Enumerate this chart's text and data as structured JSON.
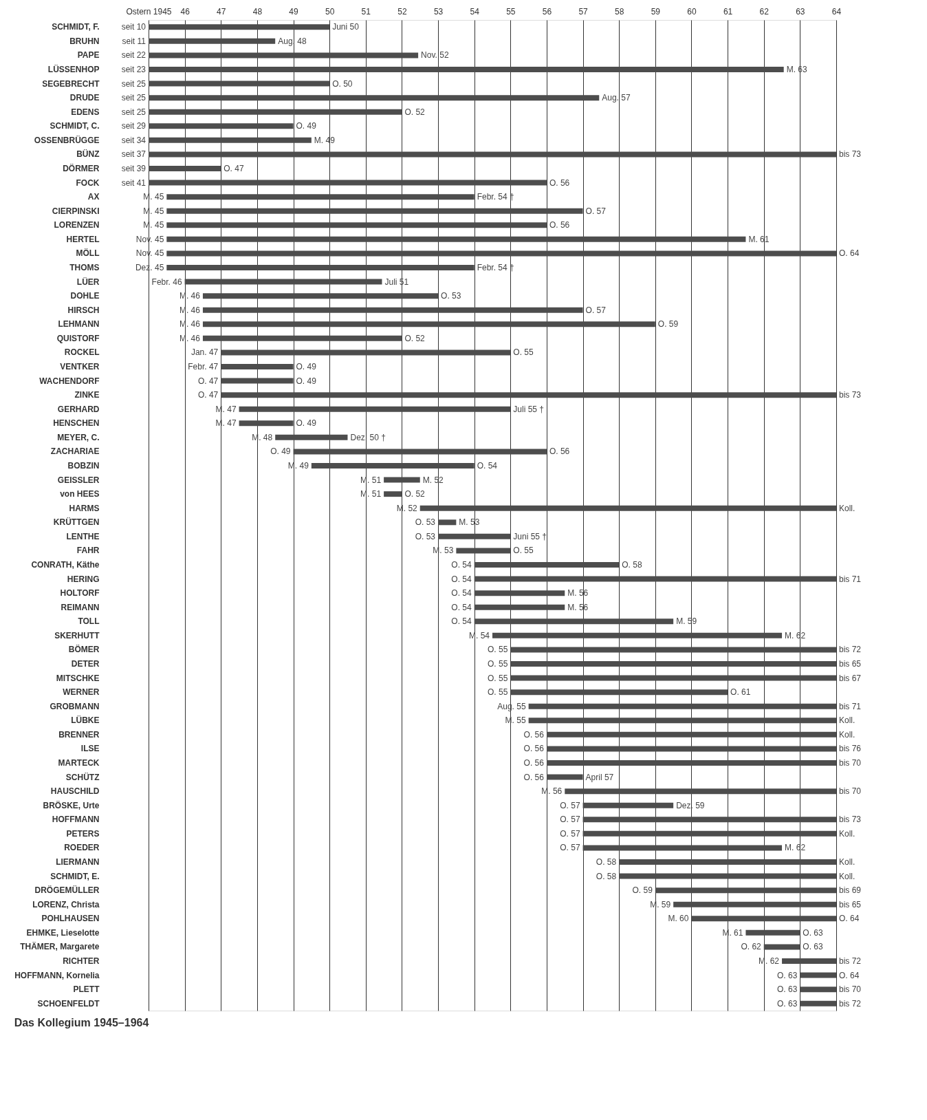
{
  "chart_data": {
    "type": "bar",
    "orientation": "horizontal",
    "title": "Das Kollegium 1945–1964",
    "color": "#4d4d4d",
    "grid": "x",
    "xlim": [
      1945,
      1964
    ],
    "xticks": [
      {
        "value": 1945,
        "label": "Ostern 1945"
      },
      {
        "value": 1946,
        "label": "46"
      },
      {
        "value": 1947,
        "label": "47"
      },
      {
        "value": 1948,
        "label": "48"
      },
      {
        "value": 1949,
        "label": "49"
      },
      {
        "value": 1950,
        "label": "50"
      },
      {
        "value": 1951,
        "label": "51"
      },
      {
        "value": 1952,
        "label": "52"
      },
      {
        "value": 1953,
        "label": "53"
      },
      {
        "value": 1954,
        "label": "54"
      },
      {
        "value": 1955,
        "label": "55"
      },
      {
        "value": 1956,
        "label": "56"
      },
      {
        "value": 1957,
        "label": "57"
      },
      {
        "value": 1958,
        "label": "58"
      },
      {
        "value": 1959,
        "label": "59"
      },
      {
        "value": 1960,
        "label": "60"
      },
      {
        "value": 1961,
        "label": "61"
      },
      {
        "value": 1962,
        "label": "62"
      },
      {
        "value": 1963,
        "label": "63"
      },
      {
        "value": 1964,
        "label": "64"
      }
    ],
    "categories": [
      "SCHMIDT, F.",
      "BRUHN",
      "PAPE",
      "LÜSSENHOP",
      "SEGEBRECHT",
      "DRUDE",
      "EDENS",
      "SCHMIDT, C.",
      "OSSENBRÜGGE",
      "BÜNZ",
      "DÖRMER",
      "FOCK",
      "AX",
      "CIERPINSKI",
      "LORENZEN",
      "HERTEL",
      "MÖLL",
      "THOMS",
      "LÜER",
      "DOHLE",
      "HIRSCH",
      "LEHMANN",
      "QUISTORF",
      "ROCKEL",
      "VENTKER",
      "WACHENDORF",
      "ZINKE",
      "GERHARD",
      "HENSCHEN",
      "MEYER, C.",
      "ZACHARIAE",
      "BOBZIN",
      "GEISSLER",
      "von HEES",
      "HARMS",
      "KRÜTTGEN",
      "LENTHE",
      "FAHR",
      "CONRATH, Käthe",
      "HERING",
      "HOLTORF",
      "REIMANN",
      "TOLL",
      "SKERHUTT",
      "BÖMER",
      "DETER",
      "MITSCHKE",
      "WERNER",
      "GROBMANN",
      "LÜBKE",
      "BRENNER",
      "ILSE",
      "MARTECK",
      "SCHÜTZ",
      "HAUSCHILD",
      "BRÖSKE, Urte",
      "HOFFMANN",
      "PETERS",
      "ROEDER",
      "LIERMANN",
      "SCHMIDT, E.",
      "DRÖGEMÜLLER",
      "LORENZ, Christa",
      "POHLHAUSEN",
      "EHMKE, Lieselotte",
      "THÄMER, Margarete",
      "RICHTER",
      "HOFFMANN, Kornelia",
      "PLETT",
      "SCHOENFELDT"
    ],
    "base": [
      1945,
      1945,
      1945,
      1945,
      1945,
      1945,
      1945,
      1945,
      1945,
      1945,
      1945,
      1945,
      1945.5,
      1945.5,
      1945.5,
      1945.5,
      1945.5,
      1945.5,
      1946,
      1946.5,
      1946.5,
      1946.5,
      1946.5,
      1947,
      1947,
      1947,
      1947,
      1947.5,
      1947.5,
      1948.5,
      1949,
      1949.5,
      1951.5,
      1951.5,
      1952.5,
      1953,
      1953,
      1953.5,
      1954,
      1954,
      1954,
      1954,
      1954,
      1954.5,
      1955,
      1955,
      1955,
      1955,
      1955.5,
      1955.5,
      1956,
      1956,
      1956,
      1956,
      1956.5,
      1957,
      1957,
      1957,
      1957,
      1958,
      1958,
      1959,
      1959.5,
      1960,
      1961.5,
      1962,
      1962.5,
      1963,
      1963,
      1963
    ],
    "values": [
      5,
      3.5,
      7.45,
      17.55,
      5,
      12.45,
      7,
      4,
      4.5,
      19,
      2,
      11,
      8.5,
      11.5,
      10.5,
      16,
      18.5,
      8.5,
      5.45,
      6.5,
      10.5,
      12.5,
      5.5,
      8,
      2,
      2,
      17,
      7.5,
      1.5,
      2,
      7,
      4.5,
      1,
      0.5,
      11.5,
      0.5,
      2,
      1.5,
      4,
      10,
      2.5,
      2.5,
      5.5,
      8,
      9,
      9,
      9,
      6,
      8.5,
      8.5,
      8,
      8,
      8,
      1,
      7.5,
      2.5,
      7,
      7,
      5.5,
      6,
      6,
      5,
      4.5,
      4,
      1.5,
      1,
      1.5,
      1,
      1,
      1
    ],
    "annotations": [
      {
        "text": "seit 10",
        "x": 1945,
        "y": "SCHMIDT, F."
      },
      {
        "text": "Juni 50",
        "x": 1950,
        "y": "SCHMIDT, F."
      },
      {
        "text": "seit 11",
        "x": 1945,
        "y": "BRUHN"
      },
      {
        "text": "Aug. 48",
        "x": 1948.5,
        "y": "BRUHN"
      },
      {
        "text": "seit 22",
        "x": 1945,
        "y": "PAPE"
      },
      {
        "text": "Nov. 52",
        "x": 1952.45,
        "y": "PAPE"
      },
      {
        "text": "seit 23",
        "x": 1945,
        "y": "LÜSSENHOP"
      },
      {
        "text": "M. 63",
        "x": 1962.55,
        "y": "LÜSSENHOP"
      },
      {
        "text": "seit 25",
        "x": 1945,
        "y": "SEGEBRECHT"
      },
      {
        "text": "O. 50",
        "x": 1950,
        "y": "SEGEBRECHT"
      },
      {
        "text": "seit 25",
        "x": 1945,
        "y": "DRUDE"
      },
      {
        "text": "Aug. 57",
        "x": 1957.45,
        "y": "DRUDE"
      },
      {
        "text": "seit 25",
        "x": 1945,
        "y": "EDENS"
      },
      {
        "text": "O. 52",
        "x": 1952,
        "y": "EDENS"
      },
      {
        "text": "seit 29",
        "x": 1945,
        "y": "SCHMIDT, C."
      },
      {
        "text": "O. 49",
        "x": 1949,
        "y": "SCHMIDT, C."
      },
      {
        "text": "seit 34",
        "x": 1945,
        "y": "OSSENBRÜGGE"
      },
      {
        "text": "M. 49",
        "x": 1949.5,
        "y": "OSSENBRÜGGE"
      },
      {
        "text": "seit 37",
        "x": 1945,
        "y": "BÜNZ"
      },
      {
        "text": "bis 73",
        "x": 1964,
        "y": "BÜNZ"
      },
      {
        "text": "seit 39",
        "x": 1945,
        "y": "DÖRMER"
      },
      {
        "text": "O. 47",
        "x": 1947,
        "y": "DÖRMER"
      },
      {
        "text": "seit 41",
        "x": 1945,
        "y": "FOCK"
      },
      {
        "text": "O. 56",
        "x": 1956,
        "y": "FOCK"
      },
      {
        "text": "M. 45",
        "x": 1945.5,
        "y": "AX"
      },
      {
        "text": "Febr. 54 †",
        "x": 1954,
        "y": "AX"
      },
      {
        "text": "M. 45",
        "x": 1945.5,
        "y": "CIERPINSKI"
      },
      {
        "text": "O. 57",
        "x": 1957,
        "y": "CIERPINSKI"
      },
      {
        "text": "M. 45",
        "x": 1945.5,
        "y": "LORENZEN"
      },
      {
        "text": "O. 56",
        "x": 1956,
        "y": "LORENZEN"
      },
      {
        "text": "Nov. 45",
        "x": 1945.5,
        "y": "HERTEL"
      },
      {
        "text": "M. 61",
        "x": 1961.5,
        "y": "HERTEL"
      },
      {
        "text": "Nov. 45",
        "x": 1945.5,
        "y": "MÖLL"
      },
      {
        "text": "O. 64",
        "x": 1964,
        "y": "MÖLL"
      },
      {
        "text": "Dez. 45",
        "x": 1945.5,
        "y": "THOMS"
      },
      {
        "text": "Febr. 54 †",
        "x": 1954,
        "y": "THOMS"
      },
      {
        "text": "Febr. 46",
        "x": 1946,
        "y": "LÜER"
      },
      {
        "text": "Juli 51",
        "x": 1951.45,
        "y": "LÜER"
      },
      {
        "text": "M. 46",
        "x": 1946.5,
        "y": "DOHLE"
      },
      {
        "text": "O. 53",
        "x": 1953,
        "y": "DOHLE"
      },
      {
        "text": "M. 46",
        "x": 1946.5,
        "y": "HIRSCH"
      },
      {
        "text": "O. 57",
        "x": 1957,
        "y": "HIRSCH"
      },
      {
        "text": "M. 46",
        "x": 1946.5,
        "y": "LEHMANN"
      },
      {
        "text": "O. 59",
        "x": 1959,
        "y": "LEHMANN"
      },
      {
        "text": "M. 46",
        "x": 1946.5,
        "y": "QUISTORF"
      },
      {
        "text": "O. 52",
        "x": 1952,
        "y": "QUISTORF"
      },
      {
        "text": "Jan. 47",
        "x": 1947,
        "y": "ROCKEL"
      },
      {
        "text": "O. 55",
        "x": 1955,
        "y": "ROCKEL"
      },
      {
        "text": "Febr. 47",
        "x": 1947,
        "y": "VENTKER"
      },
      {
        "text": "O. 49",
        "x": 1949,
        "y": "VENTKER"
      },
      {
        "text": "O. 47",
        "x": 1947,
        "y": "WACHENDORF"
      },
      {
        "text": "O. 49",
        "x": 1949,
        "y": "WACHENDORF"
      },
      {
        "text": "O. 47",
        "x": 1947,
        "y": "ZINKE"
      },
      {
        "text": "bis 73",
        "x": 1964,
        "y": "ZINKE"
      },
      {
        "text": "M. 47",
        "x": 1947.5,
        "y": "GERHARD"
      },
      {
        "text": "Juli 55 †",
        "x": 1955,
        "y": "GERHARD"
      },
      {
        "text": "M. 47",
        "x": 1947.5,
        "y": "HENSCHEN"
      },
      {
        "text": "O. 49",
        "x": 1949,
        "y": "HENSCHEN"
      },
      {
        "text": "M. 48",
        "x": 1948.5,
        "y": "MEYER, C."
      },
      {
        "text": "Dez. 50 †",
        "x": 1950.5,
        "y": "MEYER, C."
      },
      {
        "text": "O. 49",
        "x": 1949,
        "y": "ZACHARIAE"
      },
      {
        "text": "O. 56",
        "x": 1956,
        "y": "ZACHARIAE"
      },
      {
        "text": "M. 49",
        "x": 1949.5,
        "y": "BOBZIN"
      },
      {
        "text": "O. 54",
        "x": 1954,
        "y": "BOBZIN"
      },
      {
        "text": "M. 51",
        "x": 1951.5,
        "y": "GEISSLER"
      },
      {
        "text": "M. 52",
        "x": 1952.5,
        "y": "GEISSLER"
      },
      {
        "text": "M. 51",
        "x": 1951.5,
        "y": "von HEES"
      },
      {
        "text": "O. 52",
        "x": 1952,
        "y": "von HEES"
      },
      {
        "text": "M. 52",
        "x": 1952.5,
        "y": "HARMS"
      },
      {
        "text": "Koll.",
        "x": 1964,
        "y": "HARMS"
      },
      {
        "text": "O. 53",
        "x": 1953,
        "y": "KRÜTTGEN"
      },
      {
        "text": "M. 53",
        "x": 1953.5,
        "y": "KRÜTTGEN"
      },
      {
        "text": "O. 53",
        "x": 1953,
        "y": "LENTHE"
      },
      {
        "text": "Juni 55 †",
        "x": 1955,
        "y": "LENTHE"
      },
      {
        "text": "M. 53",
        "x": 1953.5,
        "y": "FAHR"
      },
      {
        "text": "O. 55",
        "x": 1955,
        "y": "FAHR"
      },
      {
        "text": "O. 54",
        "x": 1954,
        "y": "CONRATH, Käthe"
      },
      {
        "text": "O. 58",
        "x": 1958,
        "y": "CONRATH, Käthe"
      },
      {
        "text": "O. 54",
        "x": 1954,
        "y": "HERING"
      },
      {
        "text": "bis 71",
        "x": 1964,
        "y": "HERING"
      },
      {
        "text": "O. 54",
        "x": 1954,
        "y": "HOLTORF"
      },
      {
        "text": "M. 56",
        "x": 1956.5,
        "y": "HOLTORF"
      },
      {
        "text": "O. 54",
        "x": 1954,
        "y": "REIMANN"
      },
      {
        "text": "M. 56",
        "x": 1956.5,
        "y": "REIMANN"
      },
      {
        "text": "O. 54",
        "x": 1954,
        "y": "TOLL"
      },
      {
        "text": "M. 59",
        "x": 1959.5,
        "y": "TOLL"
      },
      {
        "text": "M. 54",
        "x": 1954.5,
        "y": "SKERHUTT"
      },
      {
        "text": "M. 62",
        "x": 1962.5,
        "y": "SKERHUTT"
      },
      {
        "text": "O. 55",
        "x": 1955,
        "y": "BÖMER"
      },
      {
        "text": "bis 72",
        "x": 1964,
        "y": "BÖMER"
      },
      {
        "text": "O. 55",
        "x": 1955,
        "y": "DETER"
      },
      {
        "text": "bis 65",
        "x": 1964,
        "y": "DETER"
      },
      {
        "text": "O. 55",
        "x": 1955,
        "y": "MITSCHKE"
      },
      {
        "text": "bis 67",
        "x": 1964,
        "y": "MITSCHKE"
      },
      {
        "text": "O. 55",
        "x": 1955,
        "y": "WERNER"
      },
      {
        "text": "O. 61",
        "x": 1961,
        "y": "WERNER"
      },
      {
        "text": "Aug. 55",
        "x": 1955.5,
        "y": "GROBMANN"
      },
      {
        "text": "bis 71",
        "x": 1964,
        "y": "GROBMANN"
      },
      {
        "text": "M. 55",
        "x": 1955.5,
        "y": "LÜBKE"
      },
      {
        "text": "Koll.",
        "x": 1964,
        "y": "LÜBKE"
      },
      {
        "text": "O. 56",
        "x": 1956,
        "y": "BRENNER"
      },
      {
        "text": "Koll.",
        "x": 1964,
        "y": "BRENNER"
      },
      {
        "text": "O. 56",
        "x": 1956,
        "y": "ILSE"
      },
      {
        "text": "bis 76",
        "x": 1964,
        "y": "ILSE"
      },
      {
        "text": "O. 56",
        "x": 1956,
        "y": "MARTECK"
      },
      {
        "text": "bis 70",
        "x": 1964,
        "y": "MARTECK"
      },
      {
        "text": "O. 56",
        "x": 1956,
        "y": "SCHÜTZ"
      },
      {
        "text": "April 57",
        "x": 1957,
        "y": "SCHÜTZ"
      },
      {
        "text": "M. 56",
        "x": 1956.5,
        "y": "HAUSCHILD"
      },
      {
        "text": "bis 70",
        "x": 1964,
        "y": "HAUSCHILD"
      },
      {
        "text": "O. 57",
        "x": 1957,
        "y": "BRÖSKE, Urte"
      },
      {
        "text": "Dez. 59",
        "x": 1959.5,
        "y": "BRÖSKE, Urte"
      },
      {
        "text": "O. 57",
        "x": 1957,
        "y": "HOFFMANN"
      },
      {
        "text": "bis 73",
        "x": 1964,
        "y": "HOFFMANN"
      },
      {
        "text": "O. 57",
        "x": 1957,
        "y": "PETERS"
      },
      {
        "text": "Koll.",
        "x": 1964,
        "y": "PETERS"
      },
      {
        "text": "O. 57",
        "x": 1957,
        "y": "ROEDER"
      },
      {
        "text": "M. 62",
        "x": 1962.5,
        "y": "ROEDER"
      },
      {
        "text": "O. 58",
        "x": 1958,
        "y": "LIERMANN"
      },
      {
        "text": "Koll.",
        "x": 1964,
        "y": "LIERMANN"
      },
      {
        "text": "O. 58",
        "x": 1958,
        "y": "SCHMIDT, E."
      },
      {
        "text": "Koll.",
        "x": 1964,
        "y": "SCHMIDT, E."
      },
      {
        "text": "O. 59",
        "x": 1959,
        "y": "DRÖGEMÜLLER"
      },
      {
        "text": "bis 69",
        "x": 1964,
        "y": "DRÖGEMÜLLER"
      },
      {
        "text": "M. 59",
        "x": 1959.5,
        "y": "LORENZ, Christa"
      },
      {
        "text": "bis 65",
        "x": 1964,
        "y": "LORENZ, Christa"
      },
      {
        "text": "M. 60",
        "x": 1960,
        "y": "POHLHAUSEN"
      },
      {
        "text": "O. 64",
        "x": 1964,
        "y": "POHLHAUSEN"
      },
      {
        "text": "M. 61",
        "x": 1961.5,
        "y": "EHMKE, Lieselotte"
      },
      {
        "text": "O. 63",
        "x": 1963,
        "y": "EHMKE, Lieselotte"
      },
      {
        "text": "O. 62",
        "x": 1962,
        "y": "THÄMER, Margarete"
      },
      {
        "text": "O. 63",
        "x": 1963,
        "y": "THÄMER, Margarete"
      },
      {
        "text": "M. 62",
        "x": 1962.5,
        "y": "RICHTER"
      },
      {
        "text": "bis 72",
        "x": 1964,
        "y": "RICHTER"
      },
      {
        "text": "O. 63",
        "x": 1963,
        "y": "HOFFMANN, Kornelia"
      },
      {
        "text": "O. 64",
        "x": 1964,
        "y": "HOFFMANN, Kornelia"
      },
      {
        "text": "O. 63",
        "x": 1963,
        "y": "PLETT"
      },
      {
        "text": "bis 70",
        "x": 1964,
        "y": "PLETT"
      },
      {
        "text": "O. 63",
        "x": 1963,
        "y": "SCHOENFELDT"
      },
      {
        "text": "bis 72",
        "x": 1964,
        "y": "SCHOENFELDT"
      }
    ]
  }
}
